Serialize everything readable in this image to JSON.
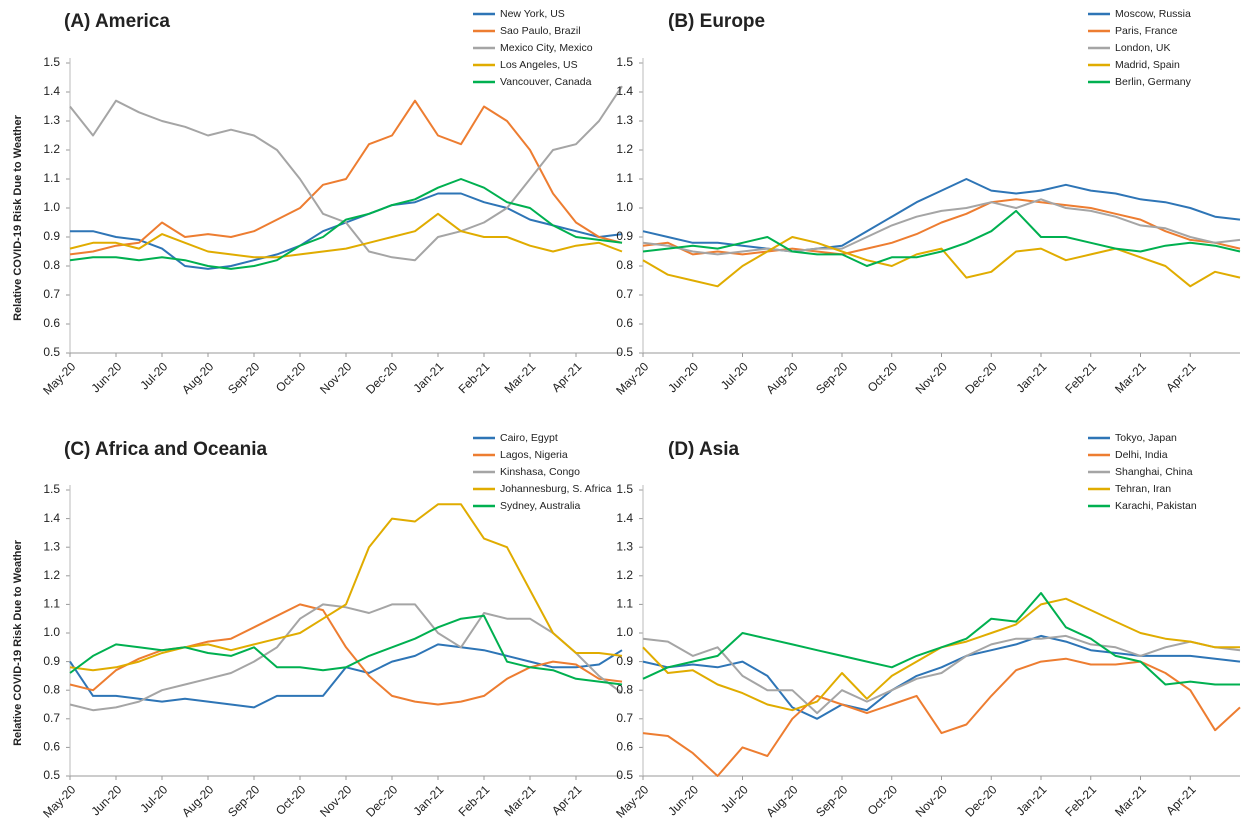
{
  "chart_data": [
    {
      "type": "line",
      "title": "(A) America",
      "ylabel": "Relative COVID-19 Risk Due to Weather",
      "categories": [
        "May-20",
        null,
        "Jun-20",
        null,
        "Jul-20",
        null,
        "Aug-20",
        null,
        "Sep-20",
        null,
        "Oct-20",
        null,
        "Nov-20",
        null,
        "Dec-20",
        null,
        "Jan-21",
        null,
        "Feb-21",
        null,
        "Mar-21",
        null,
        "Apr-21",
        null,
        null
      ],
      "ylim": [
        0.5,
        1.5
      ],
      "yticks": [
        0.5,
        0.6,
        0.7,
        0.8,
        0.9,
        {
          "value": 1,
          "label": "1.0"
        },
        1.1,
        1.2,
        1.3,
        1.4,
        1.5
      ],
      "series": [
        {
          "name": "New York, US",
          "color": "#2e75b6",
          "values": [
            0.92,
            0.92,
            0.9,
            0.89,
            0.86,
            0.8,
            0.79,
            0.8,
            0.82,
            0.84,
            0.87,
            0.92,
            0.95,
            0.98,
            1.01,
            1.02,
            1.05,
            1.05,
            1.02,
            1.0,
            0.96,
            0.94,
            0.92,
            0.9,
            0.91
          ]
        },
        {
          "name": "Sao Paulo, Brazil",
          "color": "#ed7d31",
          "values": [
            0.84,
            0.85,
            0.87,
            0.88,
            0.95,
            0.9,
            0.91,
            0.9,
            0.92,
            0.96,
            1.0,
            1.08,
            1.1,
            1.22,
            1.25,
            1.37,
            1.25,
            1.22,
            1.35,
            1.3,
            1.2,
            1.05,
            0.95,
            0.9,
            0.88
          ]
        },
        {
          "name": "Mexico City, Mexico",
          "color": "#a5a5a5",
          "values": [
            1.35,
            1.25,
            1.37,
            1.33,
            1.3,
            1.28,
            1.25,
            1.27,
            1.25,
            1.2,
            1.1,
            0.98,
            0.95,
            0.85,
            0.83,
            0.82,
            0.9,
            0.92,
            0.95,
            1.0,
            1.1,
            1.2,
            1.22,
            1.3,
            1.42
          ]
        },
        {
          "name": "Los Angeles, US",
          "color": "#e0ac00",
          "values": [
            0.86,
            0.88,
            0.88,
            0.86,
            0.91,
            0.88,
            0.85,
            0.84,
            0.83,
            0.83,
            0.84,
            0.85,
            0.86,
            0.88,
            0.9,
            0.92,
            0.98,
            0.92,
            0.9,
            0.9,
            0.87,
            0.85,
            0.87,
            0.88,
            0.85
          ]
        },
        {
          "name": "Vancouver, Canada",
          "color": "#00b050",
          "values": [
            0.82,
            0.83,
            0.83,
            0.82,
            0.83,
            0.82,
            0.8,
            0.79,
            0.8,
            0.82,
            0.87,
            0.9,
            0.96,
            0.98,
            1.01,
            1.03,
            1.07,
            1.1,
            1.07,
            1.02,
            1.0,
            0.94,
            0.9,
            0.89,
            0.88
          ]
        }
      ]
    },
    {
      "type": "line",
      "title": "(B) Europe",
      "categories": [
        "May-20",
        null,
        "Jun-20",
        null,
        "Jul-20",
        null,
        "Aug-20",
        null,
        "Sep-20",
        null,
        "Oct-20",
        null,
        "Nov-20",
        null,
        "Dec-20",
        null,
        "Jan-21",
        null,
        "Feb-21",
        null,
        "Mar-21",
        null,
        "Apr-21",
        null,
        null
      ],
      "ylim": [
        0.5,
        1.5
      ],
      "yticks": [
        0.5,
        0.6,
        0.7,
        0.8,
        0.9,
        {
          "value": 1,
          "label": "1.0"
        },
        1.1,
        1.2,
        1.3,
        1.4,
        1.5
      ],
      "series": [
        {
          "name": "Moscow, Russia",
          "color": "#2e75b6",
          "values": [
            0.92,
            0.9,
            0.88,
            0.88,
            0.87,
            0.86,
            0.85,
            0.86,
            0.87,
            0.92,
            0.97,
            1.02,
            1.06,
            1.1,
            1.06,
            1.05,
            1.06,
            1.08,
            1.06,
            1.05,
            1.03,
            1.02,
            1.0,
            0.97,
            0.96
          ]
        },
        {
          "name": "Paris, France",
          "color": "#ed7d31",
          "values": [
            0.87,
            0.88,
            0.84,
            0.85,
            0.84,
            0.85,
            0.86,
            0.85,
            0.84,
            0.86,
            0.88,
            0.91,
            0.95,
            0.98,
            1.02,
            1.03,
            1.02,
            1.01,
            1.0,
            0.98,
            0.96,
            0.92,
            0.89,
            0.88,
            0.86
          ]
        },
        {
          "name": "London, UK",
          "color": "#a5a5a5",
          "values": [
            0.88,
            0.87,
            0.85,
            0.84,
            0.85,
            0.86,
            0.85,
            0.86,
            0.86,
            0.9,
            0.94,
            0.97,
            0.99,
            1.0,
            1.02,
            1.0,
            1.03,
            1.0,
            0.99,
            0.97,
            0.94,
            0.93,
            0.9,
            0.88,
            0.89
          ]
        },
        {
          "name": "Madrid, Spain",
          "color": "#e0ac00",
          "values": [
            0.82,
            0.77,
            0.75,
            0.73,
            0.8,
            0.85,
            0.9,
            0.88,
            0.85,
            0.82,
            0.8,
            0.84,
            0.86,
            0.76,
            0.78,
            0.85,
            0.86,
            0.82,
            0.84,
            0.86,
            0.83,
            0.8,
            0.73,
            0.78,
            0.76
          ]
        },
        {
          "name": "Berlin, Germany",
          "color": "#00b050",
          "values": [
            0.85,
            0.86,
            0.87,
            0.86,
            0.88,
            0.9,
            0.85,
            0.84,
            0.84,
            0.8,
            0.83,
            0.83,
            0.85,
            0.88,
            0.92,
            0.99,
            0.9,
            0.9,
            0.88,
            0.86,
            0.85,
            0.87,
            0.88,
            0.87,
            0.85
          ]
        }
      ]
    },
    {
      "type": "line",
      "title": "(C) Africa and Oceania",
      "ylabel": "Relative COVID-19 Risk Due to Weather",
      "categories": [
        "May-20",
        null,
        "Jun-20",
        null,
        "Jul-20",
        null,
        "Aug-20",
        null,
        "Sep-20",
        null,
        "Oct-20",
        null,
        "Nov-20",
        null,
        "Dec-20",
        null,
        "Jan-21",
        null,
        "Feb-21",
        null,
        "Mar-21",
        null,
        "Apr-21",
        null,
        null
      ],
      "ylim": [
        0.5,
        1.5
      ],
      "yticks": [
        0.5,
        0.6,
        0.7,
        0.8,
        0.9,
        {
          "value": 1,
          "label": "1.0"
        },
        1.1,
        1.2,
        1.3,
        1.4,
        1.5
      ],
      "series": [
        {
          "name": "Cairo, Egypt",
          "color": "#2e75b6",
          "values": [
            0.9,
            0.78,
            0.78,
            0.77,
            0.76,
            0.77,
            0.76,
            0.75,
            0.74,
            0.78,
            0.78,
            0.78,
            0.88,
            0.86,
            0.9,
            0.92,
            0.96,
            0.95,
            0.94,
            0.92,
            0.9,
            0.88,
            0.88,
            0.89,
            0.94
          ]
        },
        {
          "name": "Lagos, Nigeria",
          "color": "#ed7d31",
          "values": [
            0.82,
            0.8,
            0.87,
            0.91,
            0.94,
            0.95,
            0.97,
            0.98,
            1.02,
            1.06,
            1.1,
            1.08,
            0.95,
            0.85,
            0.78,
            0.76,
            0.75,
            0.76,
            0.78,
            0.84,
            0.88,
            0.9,
            0.89,
            0.84,
            0.83
          ]
        },
        {
          "name": "Kinshasa, Congo",
          "color": "#a5a5a5",
          "values": [
            0.75,
            0.73,
            0.74,
            0.76,
            0.8,
            0.82,
            0.84,
            0.86,
            0.9,
            0.95,
            1.05,
            1.1,
            1.09,
            1.07,
            1.1,
            1.1,
            1.0,
            0.95,
            1.07,
            1.05,
            1.05,
            1.0,
            0.93,
            0.85,
            0.79
          ]
        },
        {
          "name": "Johannesburg, S. Africa",
          "color": "#e0ac00",
          "values": [
            0.88,
            0.87,
            0.88,
            0.9,
            0.93,
            0.95,
            0.96,
            0.94,
            0.96,
            0.98,
            1.0,
            1.05,
            1.1,
            1.3,
            1.4,
            1.39,
            1.45,
            1.45,
            1.33,
            1.3,
            1.15,
            1.0,
            0.93,
            0.93,
            0.92
          ]
        },
        {
          "name": "Sydney, Australia",
          "color": "#00b050",
          "values": [
            0.86,
            0.92,
            0.96,
            0.95,
            0.94,
            0.95,
            0.93,
            0.92,
            0.95,
            0.88,
            0.88,
            0.87,
            0.88,
            0.92,
            0.95,
            0.98,
            1.02,
            1.05,
            1.06,
            0.9,
            0.88,
            0.87,
            0.84,
            0.83,
            0.82
          ]
        }
      ]
    },
    {
      "type": "line",
      "title": "(D) Asia",
      "categories": [
        "May-20",
        null,
        "Jun-20",
        null,
        "Jul-20",
        null,
        "Aug-20",
        null,
        "Sep-20",
        null,
        "Oct-20",
        null,
        "Nov-20",
        null,
        "Dec-20",
        null,
        "Jan-21",
        null,
        "Feb-21",
        null,
        "Mar-21",
        null,
        "Apr-21",
        null,
        null
      ],
      "ylim": [
        0.5,
        1.5
      ],
      "yticks": [
        0.5,
        0.6,
        0.7,
        0.8,
        0.9,
        {
          "value": 1,
          "label": "1.0"
        },
        1.1,
        1.2,
        1.3,
        1.4,
        1.5
      ],
      "series": [
        {
          "name": "Tokyo, Japan",
          "color": "#2e75b6",
          "values": [
            0.9,
            0.88,
            0.89,
            0.88,
            0.9,
            0.85,
            0.74,
            0.7,
            0.75,
            0.73,
            0.8,
            0.85,
            0.88,
            0.92,
            0.94,
            0.96,
            0.99,
            0.97,
            0.94,
            0.93,
            0.92,
            0.92,
            0.92,
            0.91,
            0.9
          ]
        },
        {
          "name": "Delhi, India",
          "color": "#ed7d31",
          "values": [
            0.65,
            0.64,
            0.58,
            0.5,
            0.6,
            0.57,
            0.7,
            0.78,
            0.75,
            0.72,
            0.75,
            0.78,
            0.65,
            0.68,
            0.78,
            0.87,
            0.9,
            0.91,
            0.89,
            0.89,
            0.9,
            0.86,
            0.8,
            0.66,
            0.74
          ]
        },
        {
          "name": "Shanghai, China",
          "color": "#a5a5a5",
          "values": [
            0.98,
            0.97,
            0.92,
            0.95,
            0.85,
            0.8,
            0.8,
            0.72,
            0.8,
            0.76,
            0.8,
            0.84,
            0.86,
            0.92,
            0.96,
            0.98,
            0.98,
            0.99,
            0.96,
            0.95,
            0.92,
            0.95,
            0.97,
            0.95,
            0.94
          ]
        },
        {
          "name": "Tehran, Iran",
          "color": "#e0ac00",
          "values": [
            0.95,
            0.86,
            0.87,
            0.82,
            0.79,
            0.75,
            0.73,
            0.76,
            0.86,
            0.77,
            0.85,
            0.9,
            0.95,
            0.97,
            1.0,
            1.03,
            1.1,
            1.12,
            1.08,
            1.04,
            1.0,
            0.98,
            0.97,
            0.95,
            0.95
          ]
        },
        {
          "name": "Karachi, Pakistan",
          "color": "#00b050",
          "values": [
            0.84,
            0.88,
            0.9,
            0.92,
            1.0,
            0.98,
            0.96,
            0.94,
            0.92,
            0.9,
            0.88,
            0.92,
            0.95,
            0.98,
            1.05,
            1.04,
            1.14,
            1.02,
            0.98,
            0.92,
            0.9,
            0.82,
            0.83,
            0.82,
            0.82
          ]
        }
      ]
    }
  ]
}
